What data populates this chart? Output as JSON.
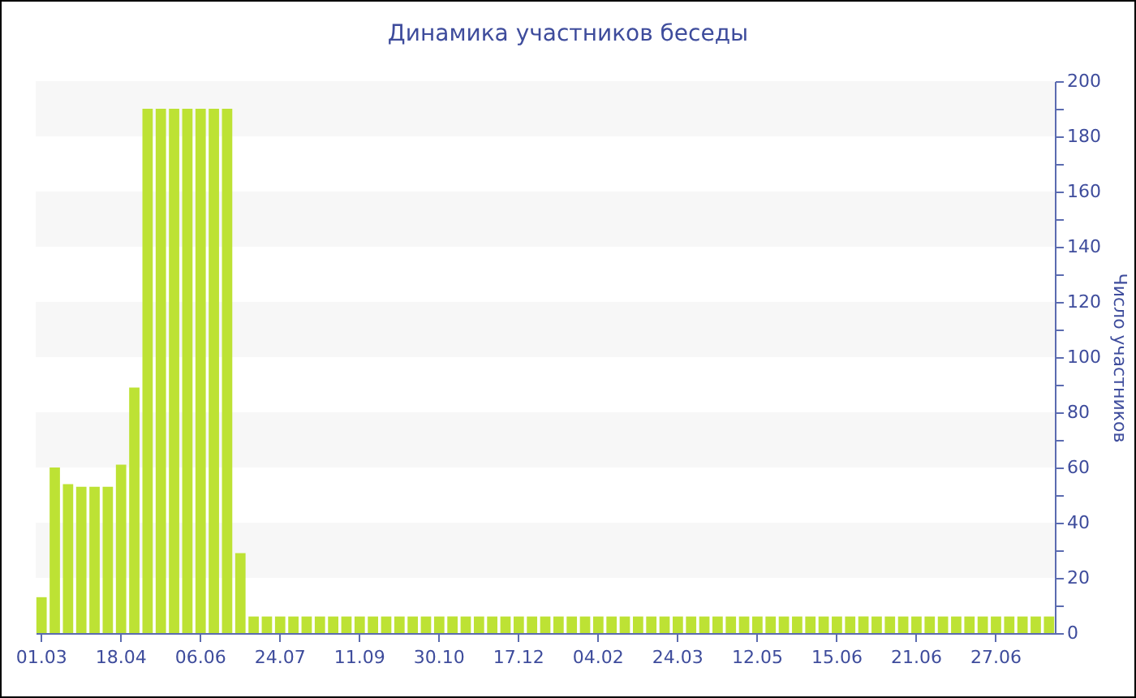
{
  "chart_data": {
    "type": "bar",
    "title": "Динамика участников беседы",
    "ylabel": "Число участников",
    "categories": [
      "01.03",
      null,
      null,
      null,
      null,
      null,
      "18.04",
      null,
      null,
      null,
      null,
      null,
      "06.06",
      null,
      null,
      null,
      null,
      null,
      "24.07",
      null,
      null,
      null,
      null,
      null,
      "11.09",
      null,
      null,
      null,
      null,
      null,
      "30.10",
      null,
      null,
      null,
      null,
      null,
      "17.12",
      null,
      null,
      null,
      null,
      null,
      "04.02",
      null,
      null,
      null,
      null,
      null,
      "24.03",
      null,
      null,
      null,
      null,
      null,
      "12.05",
      null,
      null,
      null,
      null,
      null,
      "15.06",
      null,
      null,
      null,
      null,
      null,
      "21.06",
      null,
      null,
      null,
      null,
      null,
      "27.06",
      null,
      null,
      null,
      null
    ],
    "values": [
      13,
      60,
      54,
      53,
      53,
      53,
      61,
      89,
      190,
      190,
      190,
      190,
      190,
      190,
      190,
      29,
      6,
      6,
      6,
      6,
      6,
      6,
      6,
      6,
      6,
      6,
      6,
      6,
      6,
      6,
      6,
      6,
      6,
      6,
      6,
      6,
      6,
      6,
      6,
      6,
      6,
      6,
      6,
      6,
      6,
      6,
      6,
      6,
      6,
      6,
      6,
      6,
      6,
      6,
      6,
      6,
      6,
      6,
      6,
      6,
      6,
      6,
      6,
      6,
      6,
      6,
      6,
      6,
      6,
      6,
      6,
      6,
      6,
      6,
      6,
      6,
      6
    ],
    "color": "#bde234",
    "ylim": [
      0,
      200
    ],
    "yticks": [
      0,
      {
        "value": 10,
        "label": null
      },
      20,
      {
        "value": 30,
        "label": null
      },
      40,
      {
        "value": 50,
        "label": null
      },
      60,
      {
        "value": 70,
        "label": null
      },
      80,
      {
        "value": 90,
        "label": null
      },
      100,
      {
        "value": 110,
        "label": null
      },
      120,
      {
        "value": 130,
        "label": null
      },
      140,
      {
        "value": 150,
        "label": null
      },
      160,
      {
        "value": 170,
        "label": null
      },
      180,
      {
        "value": 190,
        "label": null
      },
      200
    ],
    "bands": [
      {
        "axis": "y",
        "from": 20,
        "to": 40,
        "color": "#f7f7f7"
      },
      {
        "axis": "y",
        "from": 60,
        "to": 80,
        "color": "#f7f7f7"
      },
      {
        "axis": "y",
        "from": 100,
        "to": 120,
        "color": "#f7f7f7"
      },
      {
        "axis": "y",
        "from": 140,
        "to": 160,
        "color": "#f7f7f7"
      },
      {
        "axis": "y",
        "from": 180,
        "to": 200,
        "color": "#f7f7f7"
      }
    ]
  }
}
